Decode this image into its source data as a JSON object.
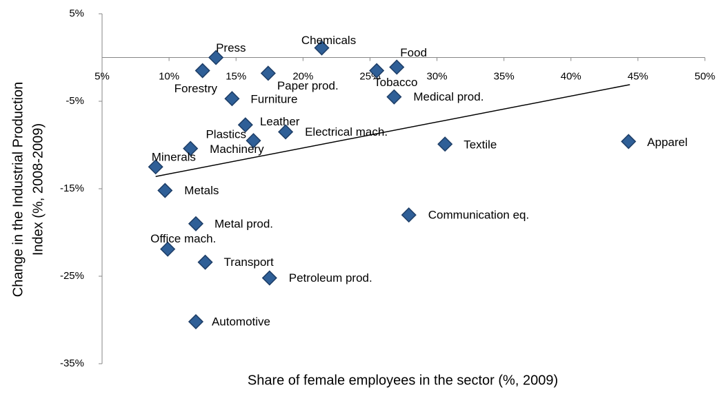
{
  "chart_data": {
    "type": "scatter",
    "x_label": "Share of female employees in the sector (%, 2009)",
    "y_label": [
      "Change in the Industrial Production",
      "Index (%, 2008-2009)"
    ],
    "point_labels": [
      "Press",
      "Chemicals",
      "Food",
      "Tobacco",
      "Forestry",
      "Paper prod.",
      "Furniture",
      "Medical prod.",
      "Leather",
      "Electrical mach.",
      "Plastics",
      "Machinery",
      "Minerals",
      "Textile",
      "Apparel",
      "Metals",
      "Metal prod.",
      "Communication eq.",
      "Office mach.",
      "Transport",
      "Petroleum prod.",
      "Automotive"
    ],
    "x": [
      13.5,
      21.4,
      27.0,
      25.5,
      12.5,
      17.4,
      14.7,
      26.8,
      15.7,
      18.7,
      16.3,
      11.6,
      9.0,
      30.6,
      44.3,
      9.7,
      12.0,
      27.9,
      9.9,
      12.7,
      17.5,
      12.0
    ],
    "values": [
      0.0,
      1.1,
      -1.1,
      -1.5,
      -1.5,
      -1.8,
      -4.7,
      -4.5,
      -7.7,
      -8.5,
      -9.5,
      -10.4,
      -12.5,
      -9.9,
      -9.6,
      -15.2,
      -19.0,
      -18.0,
      -21.9,
      -23.4,
      -25.2,
      -30.2
    ],
    "color": "#2f5f97",
    "trendline": {
      "x": [
        9.0,
        44.4
      ],
      "values": [
        -13.6,
        -3.1
      ]
    },
    "xlim": [
      5,
      50
    ],
    "ylim": [
      -35,
      5
    ],
    "xticks": [
      {
        "value": 5,
        "label": "5%"
      },
      {
        "value": 10,
        "label": "10%"
      },
      {
        "value": 15,
        "label": "15%"
      },
      {
        "value": 20,
        "label": "20%"
      },
      {
        "value": 25,
        "label": "25%"
      },
      {
        "value": 30,
        "label": "30%"
      },
      {
        "value": 35,
        "label": "35%"
      },
      {
        "value": 40,
        "label": "40%"
      },
      {
        "value": 45,
        "label": "45%"
      },
      {
        "value": 50,
        "label": "50%"
      }
    ],
    "yticks": [
      {
        "value": 5,
        "label": "5%"
      },
      {
        "value": -5,
        "label": "-5%"
      },
      {
        "value": -15,
        "label": "-15%"
      },
      {
        "value": -25,
        "label": "-25%"
      },
      {
        "value": -35,
        "label": "-35%"
      }
    ],
    "grid": false
  }
}
